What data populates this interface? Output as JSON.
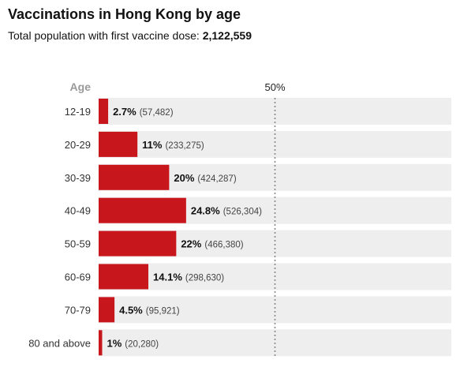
{
  "title": "Vaccinations in Hong Kong by age",
  "subtitle_prefix": "Total population with first vaccine dose: ",
  "subtitle_total": "2,122,559",
  "chart_data": {
    "type": "bar",
    "orientation": "horizontal",
    "axis_label": "Age",
    "reference_line": {
      "value": 50,
      "label": "50%"
    },
    "xlim": [
      0,
      100
    ],
    "grid": false,
    "colors": {
      "bar": "#c8161d",
      "track": "#eeeeee",
      "reference": "#888888"
    },
    "categories": [
      "12-19",
      "20-29",
      "30-39",
      "40-49",
      "50-59",
      "60-69",
      "70-79",
      "80 and above"
    ],
    "values": [
      2.7,
      11,
      20,
      24.8,
      22,
      14.1,
      4.5,
      1
    ],
    "value_labels": [
      "2.7%",
      "11%",
      "20%",
      "24.8%",
      "22%",
      "14.1%",
      "4.5%",
      "1%"
    ],
    "counts": [
      "(57,482)",
      "(233,275)",
      "(424,287)",
      "(526,304)",
      "(466,380)",
      "(298,630)",
      "(95,921)",
      "(20,280)"
    ]
  }
}
